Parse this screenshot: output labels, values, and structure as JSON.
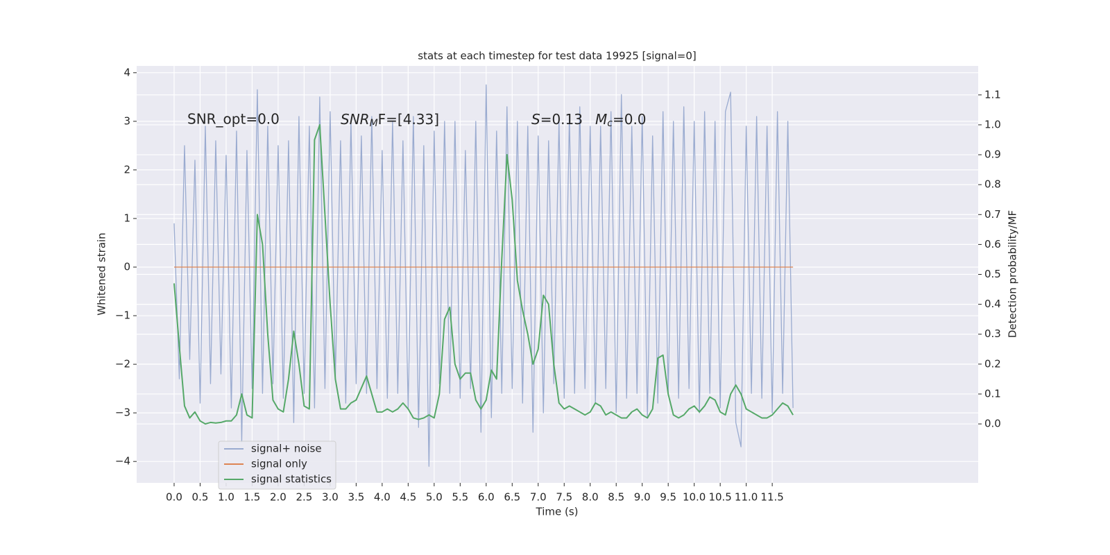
{
  "chart_data": {
    "type": "line",
    "title": "stats at each timestep for test data 19925 [signal=0]",
    "xlabel": "Time (s)",
    "ylabel": "Whitened strain",
    "y2label": "Detection probability/MF",
    "annotations": [
      {
        "text": "SNR_opt=0.0"
      },
      {
        "base": "SNR",
        "sub": "M",
        "rest": "F=[4.33]"
      },
      {
        "base": "S",
        "rest": "=0.13"
      },
      {
        "base": "M",
        "sub": "c",
        "rest": "=0.0"
      }
    ],
    "x": [
      0.0,
      0.1,
      0.2,
      0.3,
      0.4,
      0.5,
      0.6,
      0.7,
      0.8,
      0.9,
      1.0,
      1.1,
      1.2,
      1.3,
      1.4,
      1.5,
      1.6,
      1.7,
      1.8,
      1.9,
      2.0,
      2.1,
      2.2,
      2.3,
      2.4,
      2.5,
      2.6,
      2.7,
      2.8,
      2.9,
      3.0,
      3.1,
      3.2,
      3.3,
      3.4,
      3.5,
      3.6,
      3.7,
      3.8,
      3.9,
      4.0,
      4.1,
      4.2,
      4.3,
      4.4,
      4.5,
      4.6,
      4.7,
      4.8,
      4.9,
      5.0,
      5.1,
      5.2,
      5.3,
      5.4,
      5.5,
      5.6,
      5.7,
      5.8,
      5.9,
      6.0,
      6.1,
      6.2,
      6.3,
      6.4,
      6.5,
      6.6,
      6.7,
      6.8,
      6.9,
      7.0,
      7.1,
      7.2,
      7.3,
      7.4,
      7.5,
      7.6,
      7.7,
      7.8,
      7.9,
      8.0,
      8.1,
      8.2,
      8.3,
      8.4,
      8.5,
      8.6,
      8.7,
      8.8,
      8.9,
      9.0,
      9.1,
      9.2,
      9.3,
      9.4,
      9.5,
      9.6,
      9.7,
      9.8,
      9.9,
      10.0,
      10.1,
      10.2,
      10.3,
      10.4,
      10.5,
      10.6,
      10.7,
      10.8,
      10.9,
      11.0,
      11.1,
      11.2,
      11.3,
      11.4,
      11.5,
      11.6,
      11.7,
      11.8,
      11.9
    ],
    "series": [
      {
        "name": "signal+ noise",
        "color": "#9aabd0",
        "values": [
          0.9,
          -2.3,
          2.5,
          -1.9,
          2.2,
          -2.8,
          2.9,
          -2.4,
          2.6,
          -2.2,
          2.3,
          -2.9,
          2.8,
          -3.6,
          2.4,
          -2.5,
          3.65,
          -2.6,
          2.9,
          -2.4,
          2.5,
          -2.7,
          2.6,
          -3.2,
          3.1,
          -2.6,
          2.9,
          -2.9,
          3.5,
          -2.5,
          3.2,
          -2.3,
          2.6,
          -2.8,
          3.0,
          -2.4,
          2.7,
          -2.6,
          3.1,
          -2.5,
          2.4,
          -2.7,
          3.0,
          -2.6,
          2.6,
          -2.9,
          3.1,
          -3.3,
          2.5,
          -4.1,
          2.8,
          -2.4,
          3.0,
          -2.6,
          3.0,
          -2.7,
          2.4,
          -2.5,
          3.0,
          -3.4,
          3.75,
          -3.1,
          2.8,
          -2.6,
          3.3,
          -2.5,
          3.0,
          -2.8,
          2.9,
          -3.4,
          2.7,
          -3.0,
          2.6,
          -2.4,
          3.0,
          -2.7,
          3.1,
          -2.6,
          3.3,
          -2.5,
          2.9,
          -2.8,
          2.9,
          -2.5,
          3.2,
          -3.0,
          3.55,
          -2.7,
          2.9,
          -2.6,
          3.1,
          -3.1,
          2.7,
          -2.8,
          3.2,
          -2.6,
          3.0,
          -2.7,
          3.3,
          -2.5,
          3.0,
          -3.0,
          3.2,
          -2.6,
          3.0,
          -2.9,
          3.2,
          3.6,
          -3.2,
          -3.7,
          2.9,
          -2.6,
          3.1,
          -2.7,
          2.9,
          -3.0,
          3.2,
          -2.6,
          3.0,
          -2.9
        ]
      },
      {
        "name": "signal only",
        "color": "#dd8452",
        "x": [
          0.0,
          11.9
        ],
        "values": [
          0,
          0
        ]
      },
      {
        "name": "signal statistics",
        "color": "#55a868",
        "axis": "y2",
        "values": [
          0.47,
          0.26,
          0.06,
          0.02,
          0.04,
          0.01,
          0.0,
          0.005,
          0.003,
          0.005,
          0.01,
          0.01,
          0.03,
          0.1,
          0.03,
          0.02,
          0.7,
          0.6,
          0.3,
          0.08,
          0.05,
          0.04,
          0.15,
          0.31,
          0.2,
          0.06,
          0.05,
          0.95,
          1.0,
          0.7,
          0.4,
          0.15,
          0.05,
          0.05,
          0.07,
          0.08,
          0.12,
          0.16,
          0.1,
          0.04,
          0.04,
          0.05,
          0.04,
          0.05,
          0.07,
          0.05,
          0.02,
          0.015,
          0.02,
          0.03,
          0.02,
          0.1,
          0.35,
          0.39,
          0.2,
          0.15,
          0.17,
          0.17,
          0.08,
          0.05,
          0.08,
          0.18,
          0.15,
          0.55,
          0.9,
          0.75,
          0.48,
          0.38,
          0.3,
          0.2,
          0.25,
          0.43,
          0.4,
          0.2,
          0.07,
          0.05,
          0.06,
          0.05,
          0.04,
          0.03,
          0.04,
          0.07,
          0.06,
          0.03,
          0.04,
          0.03,
          0.02,
          0.02,
          0.04,
          0.05,
          0.03,
          0.02,
          0.05,
          0.22,
          0.23,
          0.1,
          0.03,
          0.02,
          0.03,
          0.05,
          0.06,
          0.04,
          0.06,
          0.09,
          0.08,
          0.04,
          0.03,
          0.1,
          0.13,
          0.1,
          0.05,
          0.04,
          0.03,
          0.02,
          0.02,
          0.03,
          0.05,
          0.07,
          0.06,
          0.03
        ]
      }
    ],
    "xlim": [
      -0.72,
      15.46
    ],
    "ylim": [
      -4.44,
      4.14
    ],
    "y2lim": [
      -0.197,
      1.197
    ],
    "xticks": [
      {
        "value": 0,
        "label": "0.0"
      },
      0.5,
      {
        "value": 1,
        "label": "1.0"
      },
      1.5,
      {
        "value": 2,
        "label": "2.0"
      },
      2.5,
      {
        "value": 3,
        "label": "3.0"
      },
      3.5,
      {
        "value": 4,
        "label": "4.0"
      },
      4.5,
      {
        "value": 5,
        "label": "5.0"
      },
      5.5,
      {
        "value": 6,
        "label": "6.0"
      },
      6.5,
      {
        "value": 7,
        "label": "7.0"
      },
      7.5,
      {
        "value": 8,
        "label": "8.0"
      },
      8.5,
      {
        "value": 9,
        "label": "9.0"
      },
      9.5,
      {
        "value": 10,
        "label": "10.0"
      },
      10.5,
      {
        "value": 11,
        "label": "11.0"
      },
      11.5
    ],
    "yticks": [
      {
        "value": -4,
        "label": "−4"
      },
      {
        "value": -3,
        "label": "−3"
      },
      {
        "value": -2,
        "label": "−2"
      },
      {
        "value": -1,
        "label": "−1"
      },
      0,
      1,
      2,
      3,
      4
    ],
    "y2ticks": [
      {
        "value": 0,
        "label": "0.0"
      },
      0.1,
      0.2,
      0.3,
      0.4,
      0.5,
      0.6,
      0.7,
      0.8,
      0.9,
      {
        "value": 1,
        "label": "1.0"
      },
      1.1
    ],
    "grid": true,
    "legend": "lower left"
  }
}
